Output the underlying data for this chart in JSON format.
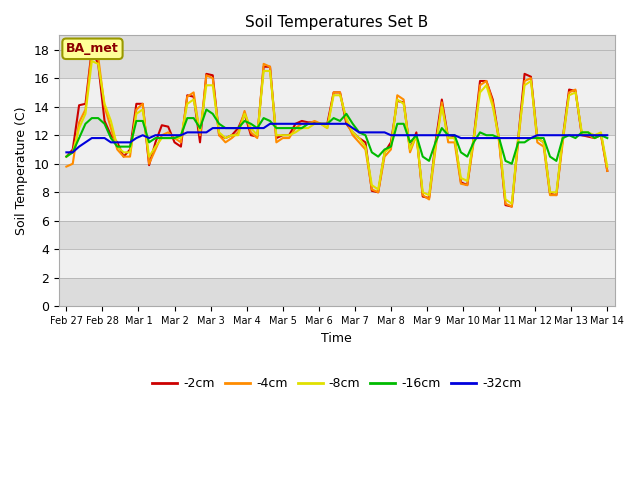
{
  "title": "Soil Temperatures Set B",
  "xlabel": "Time",
  "ylabel": "Soil Temperature (C)",
  "ylim": [
    0,
    19
  ],
  "yticks": [
    0,
    2,
    4,
    6,
    8,
    10,
    12,
    14,
    16,
    18
  ],
  "x_labels": [
    "Feb 27",
    "Feb 28",
    "Mar 1",
    "Mar 2",
    "Mar 3",
    "Mar 4",
    "Mar 5",
    "Mar 6",
    "Mar 7",
    "Mar 8",
    "Mar 9",
    "Mar 10",
    "Mar 11",
    "Mar 12",
    "Mar 13",
    "Mar 14"
  ],
  "colors": {
    "-2cm": "#cc0000",
    "-4cm": "#ff8c00",
    "-8cm": "#e0e000",
    "-16cm": "#00bb00",
    "-32cm": "#0000dd"
  },
  "annotation_text": "BA_met",
  "annotation_color": "#8b0000",
  "annotation_bg": "#ffff99",
  "bg_color": "#ffffff",
  "band_dark": "#dcdcdc",
  "band_light": "#f0f0f0",
  "series": {
    "-2cm": [
      10.5,
      11.0,
      14.1,
      14.2,
      18.0,
      17.0,
      13.0,
      12.0,
      11.5,
      10.5,
      11.0,
      14.2,
      14.2,
      9.9,
      11.5,
      12.7,
      12.6,
      11.5,
      11.2,
      14.8,
      14.7,
      11.5,
      16.3,
      16.2,
      12.0,
      11.8,
      12.0,
      12.5,
      13.5,
      12.0,
      11.9,
      16.8,
      16.8,
      11.8,
      12.0,
      12.0,
      12.8,
      13.0,
      12.9,
      12.9,
      12.8,
      12.8,
      15.0,
      15.0,
      12.8,
      12.2,
      11.8,
      11.5,
      8.1,
      8.0,
      10.8,
      11.5,
      14.4,
      14.3,
      11.0,
      12.2,
      7.7,
      7.6,
      11.5,
      14.5,
      11.8,
      11.9,
      8.7,
      8.5,
      11.8,
      15.8,
      15.8,
      14.5,
      11.7,
      7.1,
      7.0,
      11.8,
      16.3,
      16.1,
      11.8,
      11.5,
      7.9,
      7.8,
      11.8,
      15.2,
      15.1,
      12.0,
      11.9,
      11.8,
      12.1,
      9.5
    ],
    "-4cm": [
      9.8,
      10.0,
      12.9,
      13.8,
      17.8,
      17.5,
      14.0,
      12.5,
      11.0,
      10.5,
      10.5,
      13.8,
      14.2,
      10.0,
      11.0,
      12.0,
      12.2,
      11.8,
      11.5,
      14.7,
      15.0,
      12.0,
      16.2,
      16.0,
      12.0,
      11.5,
      11.8,
      12.2,
      13.7,
      12.2,
      11.8,
      17.0,
      16.8,
      11.5,
      11.8,
      11.8,
      12.5,
      12.8,
      12.8,
      13.0,
      12.8,
      12.5,
      15.0,
      15.0,
      13.0,
      12.0,
      11.5,
      11.0,
      8.2,
      8.0,
      10.5,
      11.0,
      14.8,
      14.5,
      10.8,
      12.0,
      7.8,
      7.5,
      11.0,
      14.3,
      11.5,
      11.5,
      8.6,
      8.5,
      11.5,
      15.5,
      15.8,
      14.3,
      11.5,
      7.2,
      7.0,
      11.5,
      15.8,
      16.0,
      11.5,
      11.2,
      7.8,
      7.8,
      11.5,
      15.0,
      15.2,
      12.0,
      12.0,
      11.8,
      12.0,
      9.5
    ],
    "-8cm": [
      10.5,
      10.8,
      12.5,
      13.5,
      17.2,
      17.0,
      14.2,
      13.0,
      11.2,
      10.8,
      10.8,
      13.5,
      13.8,
      10.5,
      11.2,
      11.8,
      11.8,
      11.8,
      11.8,
      14.2,
      14.5,
      12.2,
      15.5,
      15.5,
      12.2,
      11.8,
      12.0,
      12.0,
      13.5,
      12.5,
      12.0,
      16.5,
      16.5,
      12.0,
      12.0,
      12.0,
      12.2,
      12.5,
      12.5,
      12.8,
      12.8,
      12.5,
      14.8,
      14.8,
      13.2,
      12.2,
      11.8,
      11.2,
      8.5,
      8.2,
      10.8,
      11.2,
      14.5,
      14.2,
      11.0,
      12.0,
      8.0,
      7.8,
      11.2,
      14.0,
      11.8,
      11.8,
      9.0,
      8.8,
      11.8,
      15.0,
      15.5,
      14.0,
      11.8,
      7.5,
      7.2,
      11.8,
      15.5,
      15.8,
      11.8,
      11.5,
      8.0,
      8.0,
      11.8,
      14.8,
      15.0,
      12.2,
      12.2,
      12.0,
      12.2,
      9.8
    ],
    "-16cm": [
      10.5,
      10.8,
      11.8,
      12.8,
      13.2,
      13.2,
      12.8,
      11.8,
      11.2,
      11.2,
      11.2,
      13.0,
      13.0,
      11.5,
      11.8,
      11.8,
      11.8,
      11.8,
      12.0,
      13.2,
      13.2,
      12.5,
      13.8,
      13.5,
      12.8,
      12.5,
      12.5,
      12.5,
      13.0,
      12.8,
      12.5,
      13.2,
      13.0,
      12.5,
      12.5,
      12.5,
      12.5,
      12.5,
      12.8,
      12.8,
      12.8,
      12.8,
      13.2,
      13.0,
      13.5,
      12.8,
      12.2,
      12.0,
      10.8,
      10.5,
      11.0,
      11.2,
      12.8,
      12.8,
      11.5,
      12.0,
      10.5,
      10.2,
      11.5,
      12.5,
      12.0,
      12.0,
      10.8,
      10.5,
      11.5,
      12.2,
      12.0,
      12.0,
      11.8,
      10.2,
      10.0,
      11.5,
      11.5,
      11.8,
      11.8,
      11.8,
      10.5,
      10.2,
      11.8,
      12.0,
      11.8,
      12.2,
      12.2,
      11.8,
      12.0,
      11.8
    ],
    "-32cm": [
      10.8,
      10.8,
      11.2,
      11.5,
      11.8,
      11.8,
      11.8,
      11.5,
      11.5,
      11.5,
      11.5,
      11.8,
      12.0,
      11.8,
      12.0,
      12.0,
      12.0,
      12.0,
      12.0,
      12.2,
      12.2,
      12.2,
      12.2,
      12.5,
      12.5,
      12.5,
      12.5,
      12.5,
      12.5,
      12.5,
      12.5,
      12.5,
      12.8,
      12.8,
      12.8,
      12.8,
      12.8,
      12.8,
      12.8,
      12.8,
      12.8,
      12.8,
      12.8,
      12.8,
      12.8,
      12.5,
      12.2,
      12.2,
      12.2,
      12.2,
      12.2,
      12.0,
      12.0,
      12.0,
      12.0,
      12.0,
      12.0,
      12.0,
      12.0,
      12.0,
      12.0,
      12.0,
      11.8,
      11.8,
      11.8,
      11.8,
      11.8,
      11.8,
      11.8,
      11.8,
      11.8,
      11.8,
      11.8,
      11.8,
      12.0,
      12.0,
      12.0,
      12.0,
      12.0,
      12.0,
      12.0,
      12.0,
      12.0,
      12.0,
      12.0,
      12.0
    ]
  }
}
